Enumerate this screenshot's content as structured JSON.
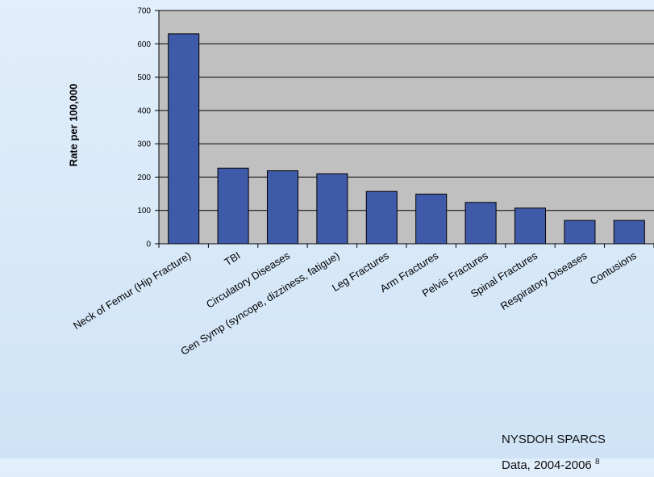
{
  "chart_data": {
    "type": "bar",
    "title": "",
    "xlabel": "",
    "ylabel": "Rate per 100,000",
    "ylim": [
      0,
      700
    ],
    "yticks": [
      0,
      100,
      200,
      300,
      400,
      500,
      600,
      700
    ],
    "grid": true,
    "categories": [
      "Neck of Femur (Hip Fracture)",
      "TBI",
      "Circulatory Diseases",
      "Gen Symp (syncope, dizziness, fatigue)",
      "Leg Fractures",
      "Arm Fractures",
      "Pelvis Fractures",
      "Spinal Fractures",
      "Respiratory Diseases",
      "Contusions"
    ],
    "values": [
      630,
      227,
      219,
      210,
      157,
      149,
      124,
      107,
      70,
      70
    ],
    "colors": {
      "bar": "#3f5aa8",
      "plot_bg": "#c0c0c0"
    }
  },
  "source": {
    "line1": "NYSDOH SPARCS",
    "line2": "Data, 2004-2006",
    "footnote": "8"
  }
}
